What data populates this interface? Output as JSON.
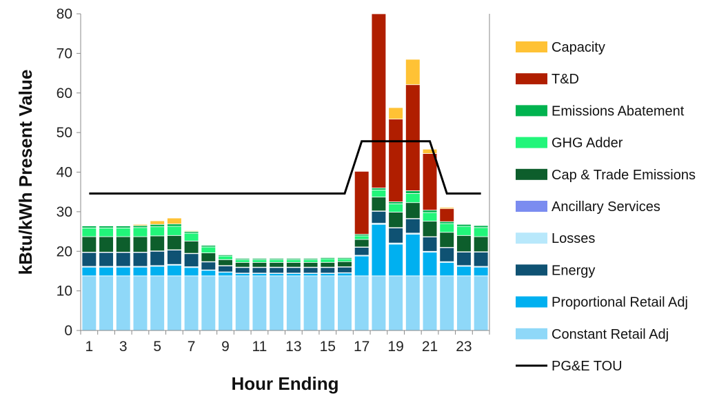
{
  "chart_data": {
    "type": "bar",
    "subtype": "stacked",
    "title": "",
    "xlabel": "Hour Ending",
    "ylabel": "kBtu/kWh Present Value",
    "ylim": [
      0,
      80
    ],
    "yticks": [
      "0",
      "10",
      "20",
      "30",
      "40",
      "50",
      "60",
      "70",
      "80"
    ],
    "categories": [
      1,
      2,
      3,
      4,
      5,
      6,
      7,
      8,
      9,
      10,
      11,
      12,
      13,
      14,
      15,
      16,
      17,
      18,
      19,
      20,
      21,
      22,
      23,
      24
    ],
    "xtick_labels": [
      "1",
      "3",
      "5",
      "7",
      "9",
      "11",
      "13",
      "15",
      "17",
      "19",
      "21",
      "23"
    ],
    "grid": false,
    "legend_position": "right",
    "series": [
      {
        "name": "Constant Retail Adj",
        "color": "#8fd8f8",
        "values": [
          13.8,
          13.8,
          13.8,
          13.8,
          13.8,
          13.8,
          13.8,
          13.8,
          13.8,
          13.8,
          13.8,
          13.8,
          13.8,
          13.8,
          13.8,
          13.8,
          13.8,
          13.8,
          13.8,
          13.8,
          13.8,
          13.8,
          13.8,
          13.8
        ]
      },
      {
        "name": "Proportional Retail Adj",
        "color": "#00b0f0",
        "values": [
          2.2,
          2.2,
          2.2,
          2.2,
          2.4,
          2.7,
          2.1,
          1.4,
          0.9,
          0.6,
          0.6,
          0.6,
          0.6,
          0.6,
          0.6,
          0.7,
          5.0,
          13.0,
          8.0,
          10.5,
          6.0,
          3.4,
          2.4,
          2.2
        ]
      },
      {
        "name": "Losses",
        "color": "#b8e8fb",
        "values": [
          0.2,
          0.2,
          0.2,
          0.2,
          0.2,
          0.2,
          0.2,
          0.1,
          0.1,
          0.1,
          0.1,
          0.1,
          0.1,
          0.1,
          0.1,
          0.1,
          0.2,
          0.3,
          0.3,
          0.3,
          0.2,
          0.2,
          0.2,
          0.2
        ]
      },
      {
        "name": "Energy",
        "color": "#0f5273",
        "values": [
          3.5,
          3.5,
          3.5,
          3.5,
          3.6,
          3.6,
          3.3,
          2.0,
          1.5,
          1.4,
          1.4,
          1.4,
          1.4,
          1.4,
          1.4,
          1.4,
          2.0,
          3.0,
          3.8,
          3.6,
          3.6,
          3.5,
          3.4,
          3.6
        ]
      },
      {
        "name": "Ancillary Services",
        "color": "#7b8cf0",
        "values": [
          0.1,
          0.1,
          0.1,
          0.1,
          0.1,
          0.1,
          0.1,
          0.1,
          0.1,
          0.1,
          0.1,
          0.1,
          0.1,
          0.1,
          0.1,
          0.1,
          0.1,
          0.1,
          0.1,
          0.1,
          0.1,
          0.1,
          0.1,
          0.1
        ]
      },
      {
        "name": "Cap & Trade Emissions",
        "color": "#0d5e2c",
        "values": [
          3.9,
          3.9,
          3.9,
          3.9,
          3.8,
          3.6,
          3.1,
          2.2,
          1.5,
          1.2,
          1.2,
          1.2,
          1.2,
          1.2,
          1.2,
          1.3,
          1.9,
          3.5,
          3.9,
          4.0,
          3.9,
          3.8,
          4.1,
          3.8
        ]
      },
      {
        "name": "GHG Adder",
        "color": "#22f57a",
        "values": [
          2.2,
          2.2,
          2.2,
          2.3,
          2.3,
          2.3,
          2.0,
          1.5,
          0.9,
          0.7,
          0.7,
          0.7,
          0.7,
          0.7,
          0.9,
          0.7,
          0.9,
          1.8,
          2.1,
          2.3,
          2.2,
          2.2,
          2.3,
          2.3
        ]
      },
      {
        "name": "Emissions Abatement",
        "color": "#00b34f",
        "values": [
          0.5,
          0.5,
          0.5,
          0.5,
          0.6,
          0.6,
          0.4,
          0.4,
          0.3,
          0.3,
          0.3,
          0.3,
          0.3,
          0.3,
          0.3,
          0.3,
          0.4,
          0.5,
          0.5,
          0.7,
          0.6,
          0.5,
          0.5,
          0.5
        ]
      },
      {
        "name": "T&D",
        "color": "#b01e00",
        "values": [
          0,
          0,
          0,
          0,
          0,
          0,
          0,
          0,
          0,
          0,
          0,
          0,
          0,
          0,
          0,
          0,
          15.9,
          44.0,
          20.9,
          26.8,
          14.3,
          3.3,
          0,
          0
        ]
      },
      {
        "name": "Capacity",
        "color": "#ffc235",
        "values": [
          0,
          0,
          0,
          0.3,
          0.9,
          1.5,
          0.2,
          0,
          0,
          0,
          0,
          0,
          0,
          0,
          0,
          0,
          0,
          0,
          2.9,
          6.4,
          1.1,
          0.3,
          0,
          0
        ]
      },
      {
        "name": "PG&E TOU",
        "color": "#000000",
        "kind": "line",
        "values": [
          34.6,
          34.6,
          34.6,
          34.6,
          34.6,
          34.6,
          34.6,
          34.6,
          34.6,
          34.6,
          34.6,
          34.6,
          34.6,
          34.6,
          34.6,
          34.6,
          47.8,
          47.8,
          47.8,
          47.8,
          47.8,
          34.6,
          34.6,
          34.6
        ]
      }
    ],
    "legend_order": [
      "Capacity",
      "T&D",
      "Emissions Abatement",
      "GHG Adder",
      "Cap & Trade Emissions",
      "Ancillary Services",
      "Losses",
      "Energy",
      "Proportional Retail Adj",
      "Constant Retail Adj",
      "PG&E TOU"
    ]
  }
}
